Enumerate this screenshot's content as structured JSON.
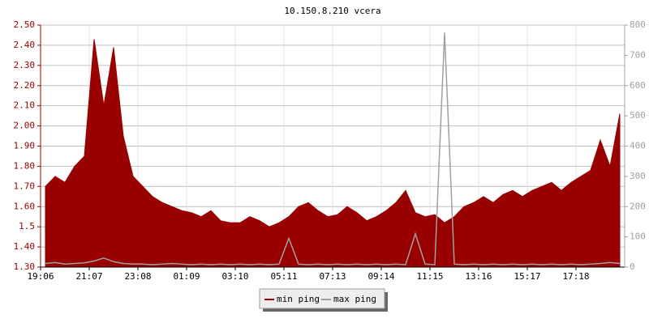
{
  "chart_data": {
    "type": "area",
    "title": "10.150.8.210 vcera",
    "categories": [
      "19:06",
      null,
      null,
      null,
      null,
      "21:07",
      null,
      null,
      null,
      null,
      "23:08",
      null,
      null,
      null,
      null,
      "01:09",
      null,
      null,
      null,
      null,
      "03:10",
      null,
      null,
      null,
      null,
      "05:11",
      null,
      null,
      null,
      null,
      "07:13",
      null,
      null,
      null,
      null,
      "09:14",
      null,
      null,
      null,
      null,
      "11:15",
      null,
      null,
      null,
      null,
      "13:16",
      null,
      null,
      null,
      null,
      "15:17",
      null,
      null,
      null,
      null,
      "17:18",
      null,
      null,
      null,
      null
    ],
    "series": [
      {
        "name": "min ping",
        "color": "#990000",
        "axis": "y",
        "values": [
          1.7,
          1.75,
          1.72,
          1.8,
          1.85,
          2.43,
          2.1,
          2.39,
          1.95,
          1.75,
          1.7,
          1.65,
          1.62,
          1.6,
          1.58,
          1.57,
          1.55,
          1.58,
          1.53,
          1.52,
          1.52,
          1.55,
          1.53,
          1.5,
          1.52,
          1.55,
          1.6,
          1.62,
          1.58,
          1.55,
          1.56,
          1.6,
          1.57,
          1.53,
          1.55,
          1.58,
          1.62,
          1.68,
          1.57,
          1.55,
          1.56,
          1.52,
          1.55,
          1.6,
          1.62,
          1.65,
          1.62,
          1.66,
          1.68,
          1.65,
          1.68,
          1.7,
          1.72,
          1.68,
          1.72,
          1.75,
          1.78,
          1.93,
          1.8,
          2.06
        ]
      },
      {
        "name": "max ping",
        "color": "#a0a0a0",
        "axis": "y2",
        "values": [
          12,
          15,
          10,
          12,
          14,
          20,
          30,
          18,
          12,
          10,
          10,
          8,
          10,
          12,
          10,
          8,
          10,
          8,
          10,
          8,
          10,
          8,
          10,
          8,
          10,
          95,
          10,
          8,
          10,
          8,
          10,
          8,
          10,
          8,
          10,
          8,
          10,
          8,
          110,
          10,
          8,
          775,
          10,
          8,
          10,
          8,
          10,
          8,
          10,
          8,
          10,
          8,
          10,
          8,
          10,
          8,
          10,
          12,
          15,
          12
        ]
      }
    ],
    "ylim": [
      1.3,
      2.5
    ],
    "yticks": [
      {
        "value": 1.3,
        "label": "1.30"
      },
      {
        "value": 1.4,
        "label": "1.40"
      },
      1.5,
      {
        "value": 1.6,
        "label": "1.60"
      },
      {
        "value": 1.7,
        "label": "1.70"
      },
      {
        "value": 1.8,
        "label": "1.80"
      },
      {
        "value": 1.9,
        "label": "1.90"
      },
      {
        "value": 2.0,
        "label": "2.00"
      },
      {
        "value": 2.1,
        "label": "2.10"
      },
      {
        "value": 2.2,
        "label": "2.20"
      },
      {
        "value": 2.3,
        "label": "2.30"
      },
      {
        "value": 2.4,
        "label": "2.40"
      },
      {
        "value": 2.5,
        "label": "2.50"
      }
    ],
    "y2lim": [
      0,
      800
    ],
    "y2ticks": [
      0,
      100,
      200,
      300,
      400,
      500,
      600,
      700,
      800
    ],
    "grid": true
  }
}
